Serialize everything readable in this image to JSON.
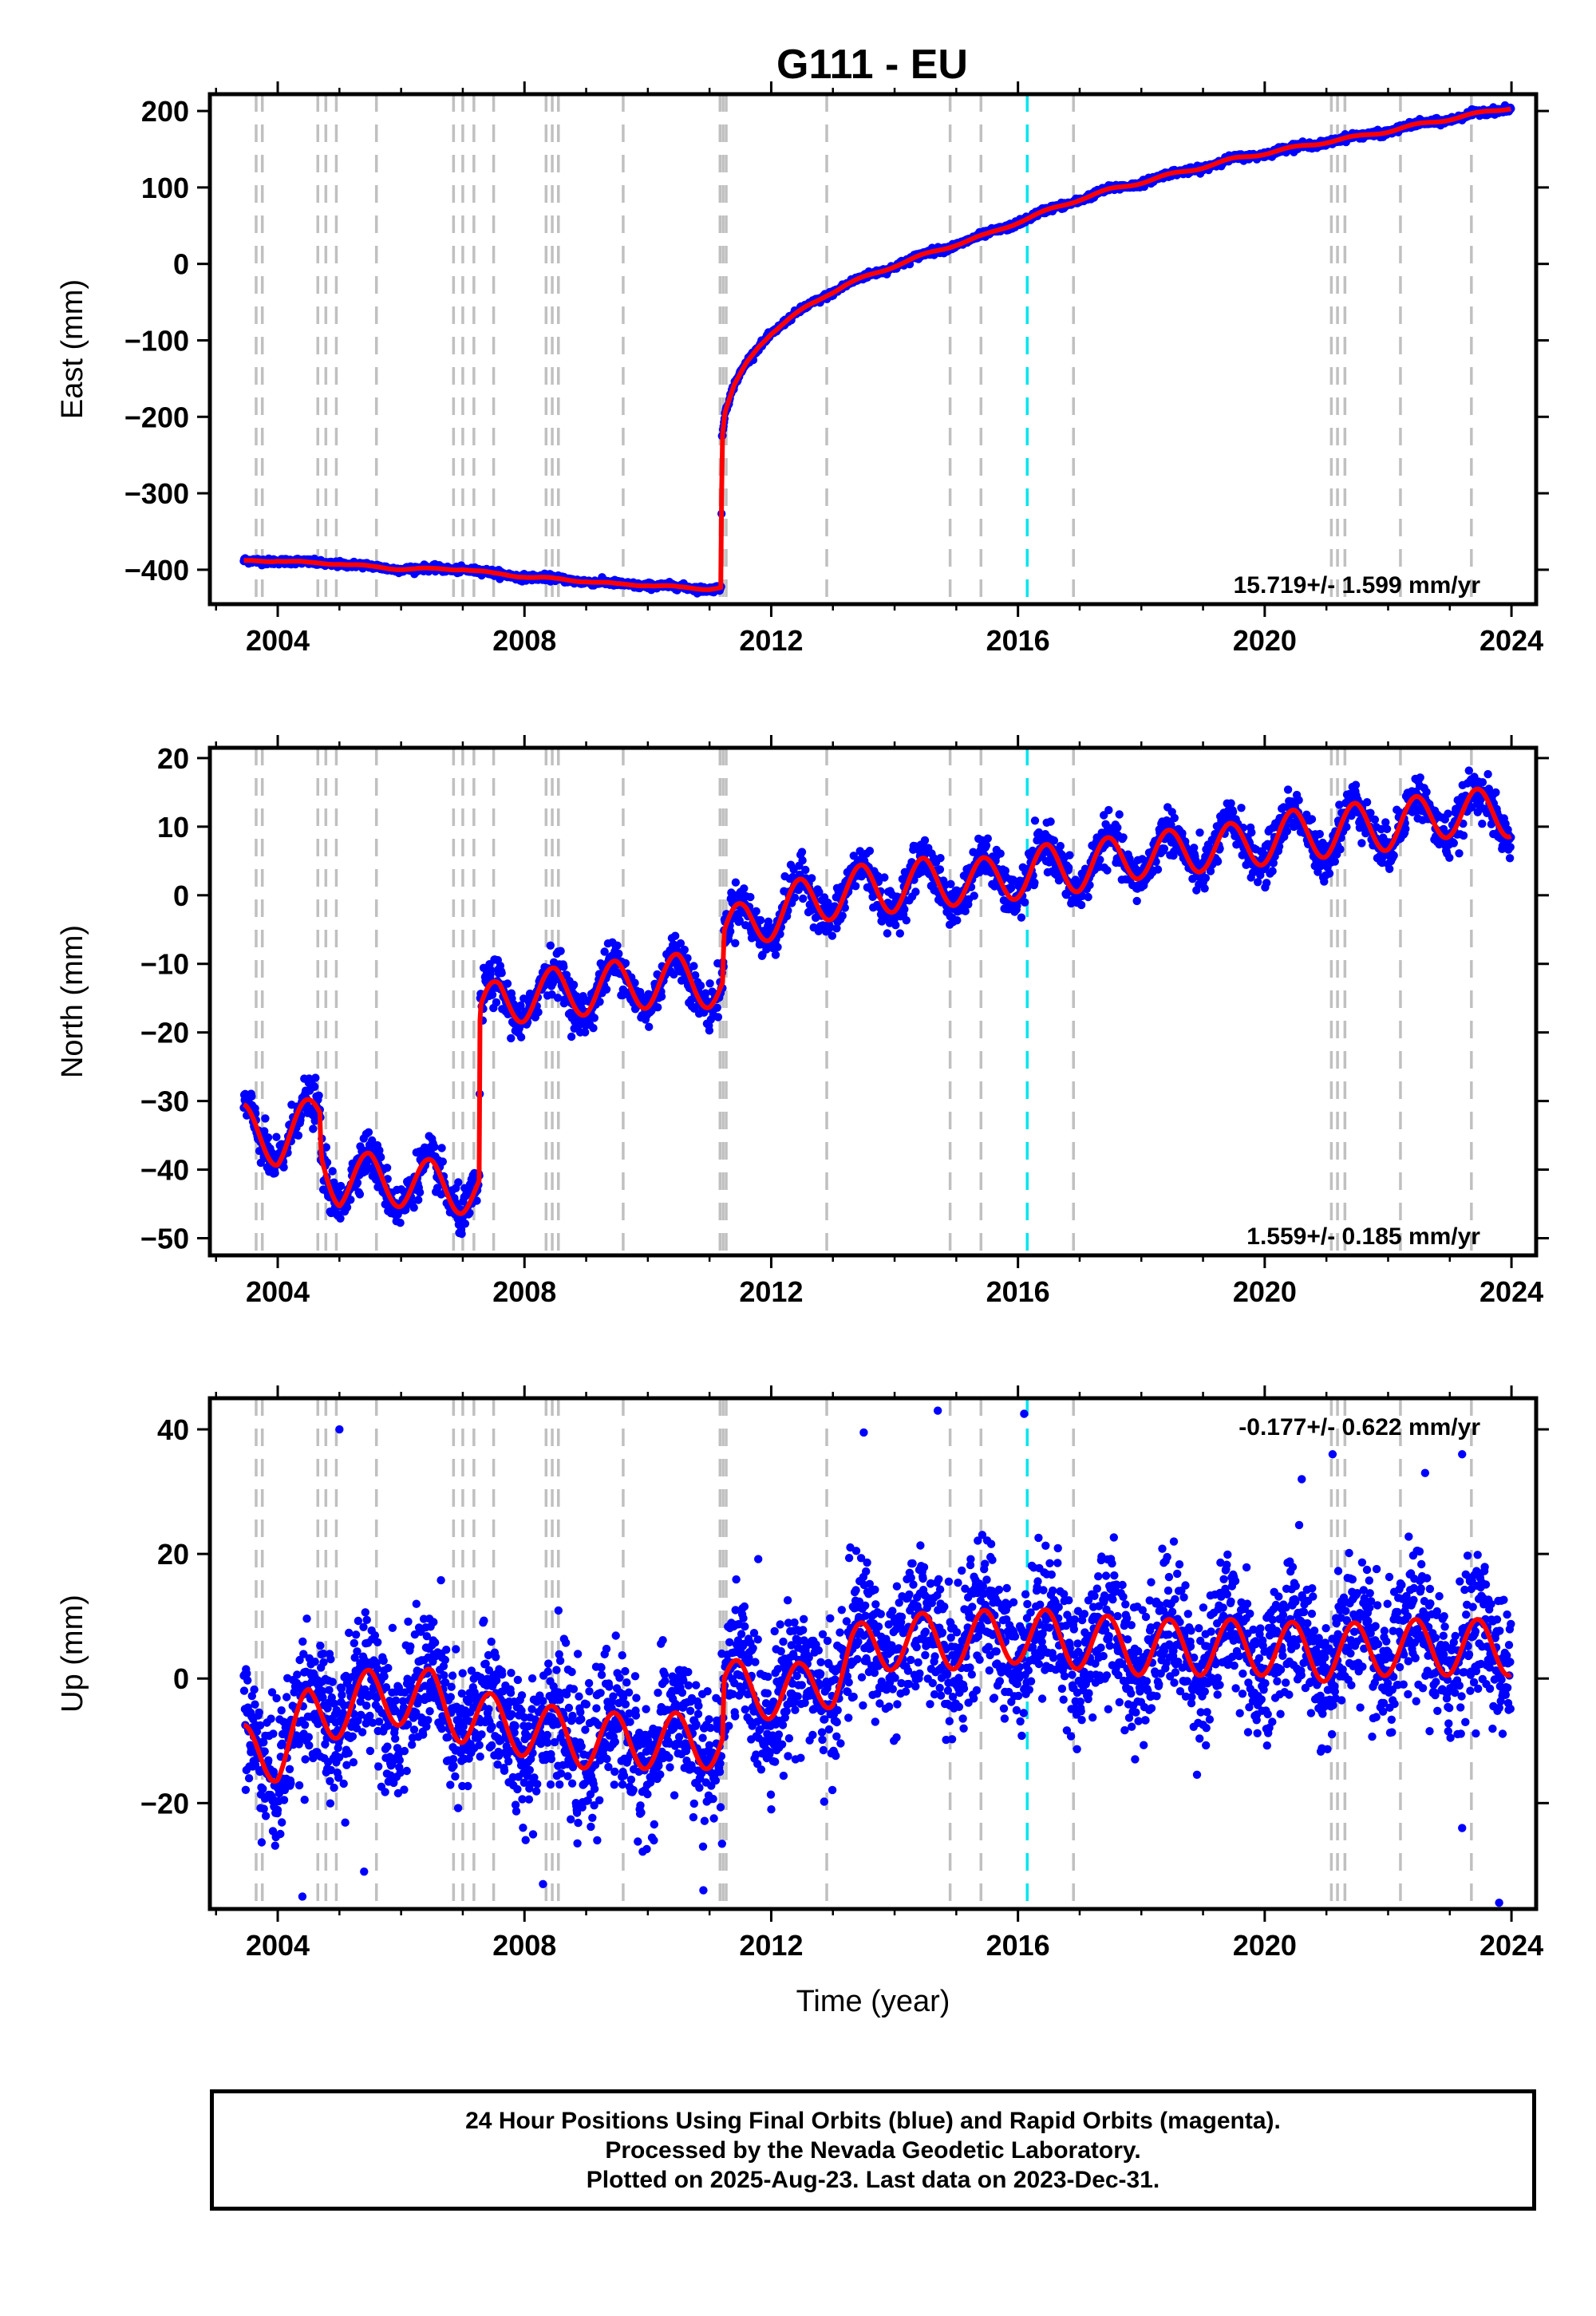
{
  "title": "G111 - EU",
  "colors": {
    "observations": "#0000ff",
    "model": "#ff0000",
    "event_line": "#c0c0c0",
    "antenna_change_line": "#00e5ee",
    "frame": "#000000"
  },
  "footer": {
    "line1": "24 Hour Positions Using Final Orbits (blue) and Rapid Orbits (magenta).",
    "line2": "Processed by the Nevada Geodetic Laboratory.",
    "line3": "Plotted on 2025-Aug-23. Last data on 2023-Dec-31."
  },
  "chart_data": [
    {
      "type": "scatter",
      "component": "east",
      "ylabel": "East (mm)",
      "xlabel": "",
      "xlim": [
        2002.9,
        2024.4
      ],
      "ylim": [
        -445,
        222
      ],
      "xticks": [
        2004,
        2008,
        2012,
        2016,
        2020,
        2024
      ],
      "xtick_labels": [
        "2004",
        "2008",
        "2012",
        "2016",
        "2020",
        "2024"
      ],
      "yticks": [
        200,
        100,
        0,
        -100,
        -200,
        -300,
        -400
      ],
      "ytick_labels": [
        "200",
        "100",
        "0",
        "−100",
        "−200",
        "−300",
        "−400"
      ],
      "rate_label": "15.719+/- 1.599 mm/yr",
      "rate_position": "bottom-right",
      "data_span": [
        2003.45,
        2023.99
      ],
      "observation_scatter_mm": 2.0,
      "trajectory_points": [
        [
          2003.45,
          -390
        ],
        [
          2004.0,
          -387
        ],
        [
          2004.5,
          -392
        ],
        [
          2005.0,
          -391
        ],
        [
          2005.5,
          -397
        ],
        [
          2006.0,
          -398
        ],
        [
          2006.5,
          -400
        ],
        [
          2007.0,
          -398
        ],
        [
          2007.5,
          -406
        ],
        [
          2008.0,
          -408
        ],
        [
          2008.5,
          -413
        ],
        [
          2009.0,
          -414
        ],
        [
          2009.5,
          -420
        ],
        [
          2010.0,
          -419
        ],
        [
          2010.5,
          -424
        ],
        [
          2011.0,
          -424
        ],
        [
          2011.19,
          -423
        ],
        [
          2011.2,
          -232
        ],
        [
          2011.25,
          -195
        ],
        [
          2011.4,
          -160
        ],
        [
          2011.6,
          -130
        ],
        [
          2011.8,
          -107
        ],
        [
          2012.0,
          -90
        ],
        [
          2012.3,
          -72
        ],
        [
          2012.6,
          -55
        ],
        [
          2012.9,
          -40
        ],
        [
          2013.2,
          -28
        ],
        [
          2013.6,
          -15
        ],
        [
          2014.0,
          -2
        ],
        [
          2014.5,
          12
        ],
        [
          2015.0,
          26
        ],
        [
          2015.5,
          38
        ],
        [
          2016.0,
          55
        ],
        [
          2016.5,
          70
        ],
        [
          2017.0,
          85
        ],
        [
          2017.5,
          97
        ],
        [
          2018.0,
          107
        ],
        [
          2018.5,
          117
        ],
        [
          2019.0,
          127
        ],
        [
          2019.5,
          137
        ],
        [
          2020.0,
          145
        ],
        [
          2020.5,
          152
        ],
        [
          2021.0,
          160
        ],
        [
          2021.5,
          166
        ],
        [
          2022.0,
          174
        ],
        [
          2022.5,
          182
        ],
        [
          2023.0,
          190
        ],
        [
          2023.5,
          197
        ],
        [
          2024.0,
          205
        ]
      ],
      "seasonal_amplitude_mm": 2.0
    },
    {
      "type": "scatter",
      "component": "north",
      "ylabel": "North (mm)",
      "xlabel": "",
      "xlim": [
        2002.9,
        2024.4
      ],
      "ylim": [
        -52.5,
        21.5
      ],
      "xticks": [
        2004,
        2008,
        2012,
        2016,
        2020,
        2024
      ],
      "xtick_labels": [
        "2004",
        "2008",
        "2012",
        "2016",
        "2020",
        "2024"
      ],
      "yticks": [
        20,
        10,
        0,
        -10,
        -20,
        -30,
        -40,
        -50
      ],
      "ytick_labels": [
        "20",
        "10",
        "0",
        "−10",
        "−20",
        "−30",
        "−40",
        "−50"
      ],
      "rate_label": "1.559+/- 0.185 mm/yr",
      "rate_position": "bottom-right",
      "data_span": [
        2003.45,
        2023.99
      ],
      "observation_scatter_mm": 1.6,
      "trajectory_points": [
        [
          2003.45,
          -34
        ],
        [
          2004.0,
          -36
        ],
        [
          2004.69,
          -32
        ],
        [
          2004.7,
          -38
        ],
        [
          2005.0,
          -42
        ],
        [
          2005.5,
          -41
        ],
        [
          2006.0,
          -42
        ],
        [
          2006.5,
          -42
        ],
        [
          2007.0,
          -43
        ],
        [
          2007.27,
          -43
        ],
        [
          2007.28,
          -18
        ],
        [
          2007.6,
          -15
        ],
        [
          2008.0,
          -15
        ],
        [
          2008.5,
          -14
        ],
        [
          2009.0,
          -14
        ],
        [
          2009.5,
          -13
        ],
        [
          2010.0,
          -13
        ],
        [
          2010.5,
          -12
        ],
        [
          2011.0,
          -13
        ],
        [
          2011.22,
          -13
        ],
        [
          2011.23,
          -6
        ],
        [
          2011.6,
          -4
        ],
        [
          2012.0,
          -3
        ],
        [
          2012.5,
          -1
        ],
        [
          2013.0,
          0
        ],
        [
          2013.5,
          1
        ],
        [
          2014.0,
          1
        ],
        [
          2014.5,
          2
        ],
        [
          2015.0,
          2
        ],
        [
          2015.5,
          2
        ],
        [
          2016.0,
          3
        ],
        [
          2016.5,
          4
        ],
        [
          2017.0,
          4
        ],
        [
          2017.5,
          5
        ],
        [
          2018.0,
          6
        ],
        [
          2018.5,
          6
        ],
        [
          2019.0,
          7
        ],
        [
          2019.5,
          7
        ],
        [
          2020.0,
          8
        ],
        [
          2020.5,
          9
        ],
        [
          2021.0,
          9
        ],
        [
          2021.5,
          10
        ],
        [
          2022.0,
          10
        ],
        [
          2022.5,
          11
        ],
        [
          2023.0,
          12
        ],
        [
          2023.5,
          12
        ],
        [
          2024.0,
          12
        ]
      ],
      "seasonal_amplitude_mm": 3.5
    },
    {
      "type": "scatter",
      "component": "up",
      "ylabel": "Up (mm)",
      "xlabel": "Time (year)",
      "xlim": [
        2002.9,
        2024.4
      ],
      "ylim": [
        -37,
        45
      ],
      "xticks": [
        2004,
        2008,
        2012,
        2016,
        2020,
        2024
      ],
      "xtick_labels": [
        "2004",
        "2008",
        "2012",
        "2016",
        "2020",
        "2024"
      ],
      "yticks": [
        40,
        20,
        0,
        -20
      ],
      "ytick_labels": [
        "40",
        "20",
        "0",
        "−20"
      ],
      "rate_label": "-0.177+/- 0.622 mm/yr",
      "rate_position": "top-right",
      "data_span": [
        2003.45,
        2023.99
      ],
      "observation_scatter_mm": 5.5,
      "trajectory_points": [
        [
          2003.45,
          -12
        ],
        [
          2004.0,
          -12
        ],
        [
          2004.5,
          -6
        ],
        [
          2005.0,
          -5
        ],
        [
          2005.5,
          -3
        ],
        [
          2006.0,
          -3
        ],
        [
          2006.5,
          -3
        ],
        [
          2007.0,
          -6
        ],
        [
          2007.5,
          -7
        ],
        [
          2008.0,
          -8
        ],
        [
          2008.5,
          -9
        ],
        [
          2009.0,
          -10
        ],
        [
          2009.5,
          -10
        ],
        [
          2010.0,
          -10
        ],
        [
          2010.5,
          -10
        ],
        [
          2011.0,
          -10
        ],
        [
          2011.22,
          -10
        ],
        [
          2011.23,
          -1
        ],
        [
          2011.6,
          -2
        ],
        [
          2012.0,
          -2
        ],
        [
          2012.5,
          -2
        ],
        [
          2013.0,
          0
        ],
        [
          2013.3,
          4
        ],
        [
          2014.0,
          6
        ],
        [
          2015.0,
          6
        ],
        [
          2016.0,
          7
        ],
        [
          2017.0,
          6
        ],
        [
          2018.0,
          5
        ],
        [
          2019.0,
          5
        ],
        [
          2020.0,
          5
        ],
        [
          2021.0,
          4
        ],
        [
          2022.0,
          5
        ],
        [
          2023.0,
          5
        ],
        [
          2024.0,
          5
        ]
      ],
      "seasonal_amplitude_mm": 4.5,
      "outliers": [
        [
          2005.0,
          40
        ],
        [
          2014.7,
          43
        ],
        [
          2016.1,
          42.5
        ],
        [
          2013.5,
          39.5
        ],
        [
          2021.1,
          36
        ],
        [
          2023.2,
          36
        ],
        [
          2020.6,
          32
        ],
        [
          2022.6,
          33
        ],
        [
          2023.8,
          -36
        ],
        [
          2004.4,
          -35
        ],
        [
          2010.9,
          -34
        ],
        [
          2023.2,
          -24
        ],
        [
          2005.4,
          -31
        ],
        [
          2008.3,
          -33
        ]
      ]
    }
  ],
  "event_lines": {
    "gray_dashed": [
      2003.65,
      2003.75,
      2004.65,
      2004.78,
      2004.95,
      2005.6,
      2006.85,
      2007.0,
      2007.18,
      2007.5,
      2008.35,
      2008.45,
      2008.55,
      2009.6,
      2011.17,
      2011.22,
      2011.27,
      2012.9,
      2014.9,
      2015.4,
      2016.9,
      2021.08,
      2021.18,
      2021.3,
      2022.2,
      2023.35
    ],
    "cyan_dashed": [
      2016.15
    ]
  }
}
